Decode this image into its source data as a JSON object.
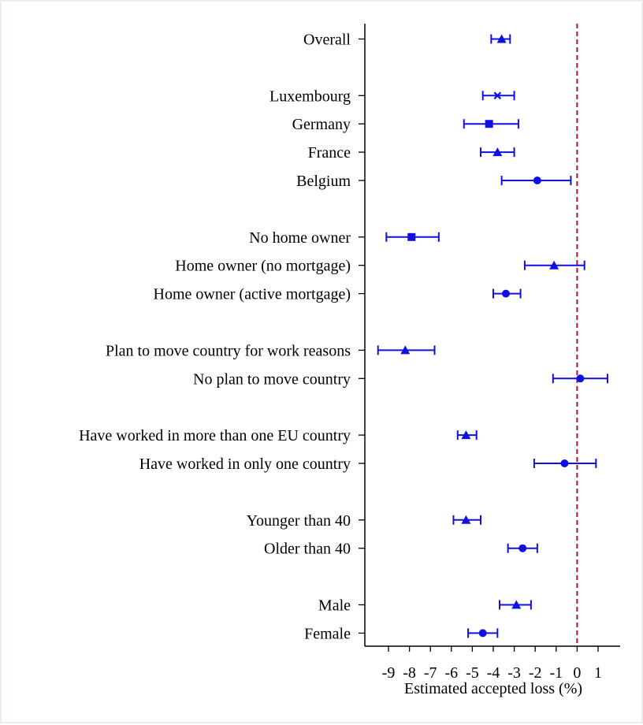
{
  "chart_data": {
    "type": "scatter",
    "subtype": "coefficient-plot-with-confidence-intervals",
    "orientation": "horizontal",
    "xlabel": "Estimated accepted loss (%)",
    "ylabel": "",
    "xlim": [
      -10.1,
      2.1
    ],
    "xticks": [
      -9,
      -8,
      -7,
      -6,
      -5,
      -4,
      -3,
      -2,
      -1,
      0,
      1
    ],
    "xtick_labels": [
      "-9",
      "-8",
      "-7",
      "-6",
      "-5",
      "-4",
      "-3",
      "-2",
      "-1",
      "0",
      "1"
    ],
    "reference_line": {
      "x": 0,
      "style": "dashed",
      "color": "#b0123a"
    },
    "grid": false,
    "legend": null,
    "marker_color": "#1010e0",
    "categories": [
      {
        "label": "Overall",
        "value": -3.6,
        "ci": [
          -4.1,
          -3.2
        ],
        "marker": "triangle",
        "slot": 0
      },
      {
        "label": "Luxembourg",
        "value": -3.8,
        "ci": [
          -4.5,
          -3.0
        ],
        "marker": "x",
        "slot": 2
      },
      {
        "label": "Germany",
        "value": -4.2,
        "ci": [
          -5.4,
          -2.8
        ],
        "marker": "square",
        "slot": 3
      },
      {
        "label": "France",
        "value": -3.8,
        "ci": [
          -4.6,
          -3.0
        ],
        "marker": "triangle",
        "slot": 4
      },
      {
        "label": "Belgium",
        "value": -1.9,
        "ci": [
          -3.6,
          -0.3
        ],
        "marker": "circle",
        "slot": 5
      },
      {
        "label": "No home owner",
        "value": -7.9,
        "ci": [
          -9.1,
          -6.6
        ],
        "marker": "square",
        "slot": 7
      },
      {
        "label": "Home owner (no mortgage)",
        "value": -1.1,
        "ci": [
          -2.5,
          0.35
        ],
        "marker": "triangle",
        "slot": 8
      },
      {
        "label": "Home owner (active mortgage)",
        "value": -3.4,
        "ci": [
          -4.0,
          -2.7
        ],
        "marker": "circle",
        "slot": 9
      },
      {
        "label": "Plan to move country for work reasons",
        "value": -8.2,
        "ci": [
          -9.5,
          -6.8
        ],
        "marker": "triangle",
        "slot": 11
      },
      {
        "label": "No plan to move country",
        "value": 0.15,
        "ci": [
          -1.15,
          1.45
        ],
        "marker": "circle",
        "slot": 12
      },
      {
        "label": "Have worked in more than one EU country",
        "value": -5.3,
        "ci": [
          -5.7,
          -4.8
        ],
        "marker": "triangle",
        "slot": 14
      },
      {
        "label": "Have worked in only one country",
        "value": -0.6,
        "ci": [
          -2.05,
          0.9
        ],
        "marker": "circle",
        "slot": 15
      },
      {
        "label": "Younger than 40",
        "value": -5.3,
        "ci": [
          -5.9,
          -4.6
        ],
        "marker": "triangle",
        "slot": 17
      },
      {
        "label": "Older than 40",
        "value": -2.6,
        "ci": [
          -3.3,
          -1.9
        ],
        "marker": "circle",
        "slot": 18
      },
      {
        "label": "Male",
        "value": -2.9,
        "ci": [
          -3.7,
          -2.2
        ],
        "marker": "triangle",
        "slot": 20
      },
      {
        "label": "Female",
        "value": -4.5,
        "ci": [
          -5.2,
          -3.8
        ],
        "marker": "circle",
        "slot": 21
      }
    ]
  }
}
